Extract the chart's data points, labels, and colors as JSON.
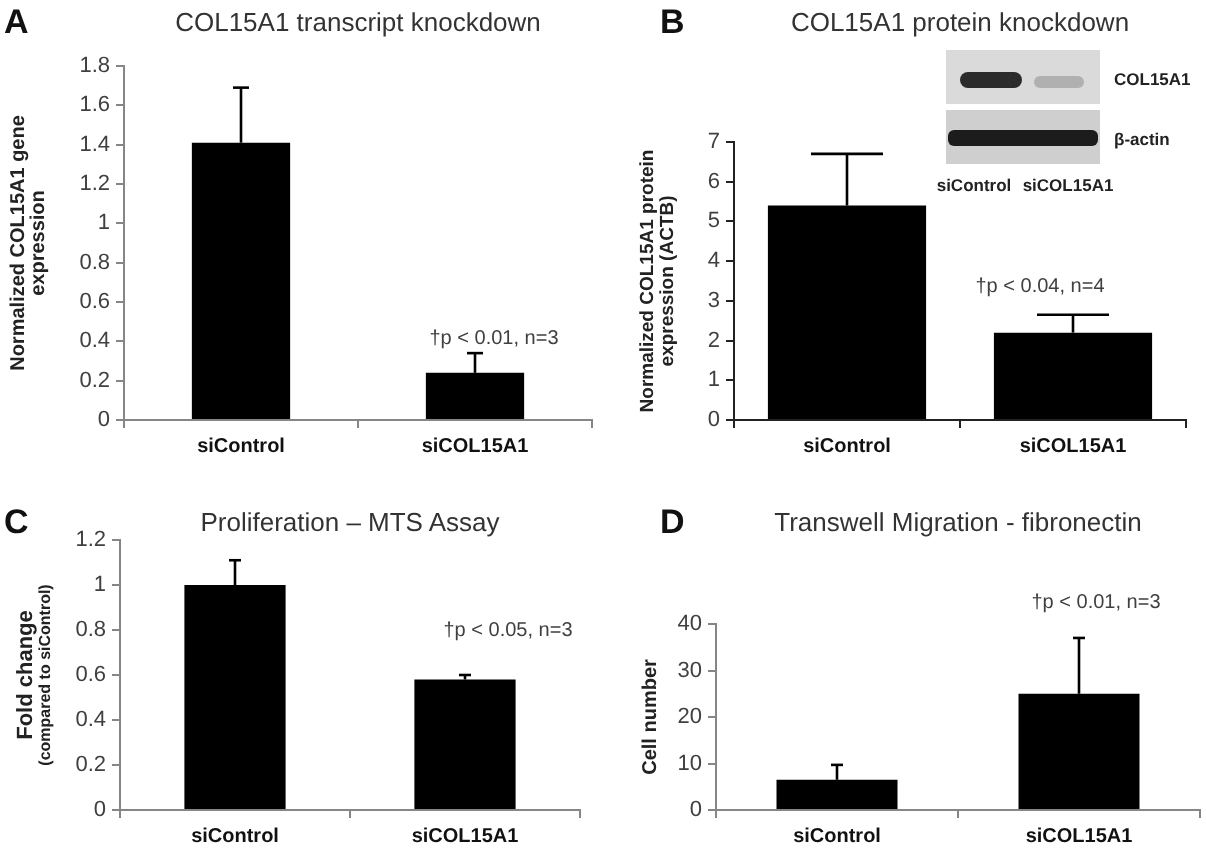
{
  "chart_data": [
    {
      "type": "bar",
      "title": "COL15A1 transcript knockdown",
      "ylabel": "Normalized COL15A1 gene\nexpression",
      "categories": [
        "siControl",
        "siCOL15A1"
      ],
      "values": [
        1.41,
        0.24
      ],
      "errors": [
        [
          1.41,
          1.69
        ],
        [
          0.24,
          0.34
        ]
      ],
      "color": "#000000",
      "ylim": [
        0,
        1.8
      ],
      "yticks": [
        0,
        0.2,
        0.4,
        0.6,
        0.8,
        1,
        1.2,
        1.4,
        1.6,
        1.8
      ],
      "annotations": [
        "A",
        "†p < 0.01, n=3"
      ]
    },
    {
      "type": "bar",
      "title": "COL15A1 protein knockdown",
      "ylabel": "Normalized COL15A1 protein\nexpression (ACTB)",
      "categories": [
        "siControl",
        "siCOL15A1"
      ],
      "values": [
        5.4,
        2.2
      ],
      "errors": [
        [
          5.4,
          6.7
        ],
        [
          2.2,
          2.65
        ]
      ],
      "color": "#000000",
      "ylim": [
        0,
        7
      ],
      "yticks": [
        0,
        1,
        2,
        3,
        4,
        5,
        6,
        7
      ],
      "annotations": [
        "B",
        "†p < 0.04, n=4",
        "COL15A1",
        "β-actin",
        "siControl",
        "siCOL15A1"
      ]
    },
    {
      "type": "bar",
      "title": "Proliferation – MTS Assay",
      "ylabel": "Fold change\n(compared to siControl)",
      "categories": [
        "siControl",
        "siCOL15A1"
      ],
      "values": [
        1,
        0.58
      ],
      "errors": [
        [
          1,
          1.11
        ],
        [
          0.58,
          0.6
        ]
      ],
      "color": "#000000",
      "ylim": [
        0,
        1.2
      ],
      "yticks": [
        0,
        0.2,
        0.4,
        0.6,
        0.8,
        1,
        1.2
      ],
      "annotations": [
        "C",
        "†p < 0.05, n=3"
      ]
    },
    {
      "type": "bar",
      "title": "Transwell Migration - fibronectin",
      "ylabel": "Cell number",
      "categories": [
        "siControl",
        "siCOL15A1"
      ],
      "values": [
        6.5,
        25
      ],
      "errors": [
        [
          6.5,
          9.7
        ],
        [
          25,
          37
        ]
      ],
      "color": "#000000",
      "ylim": [
        0,
        40
      ],
      "yticks": [
        0,
        10,
        20,
        30,
        40
      ],
      "annotations": [
        "D",
        "†p < 0.01, n=3"
      ]
    }
  ]
}
